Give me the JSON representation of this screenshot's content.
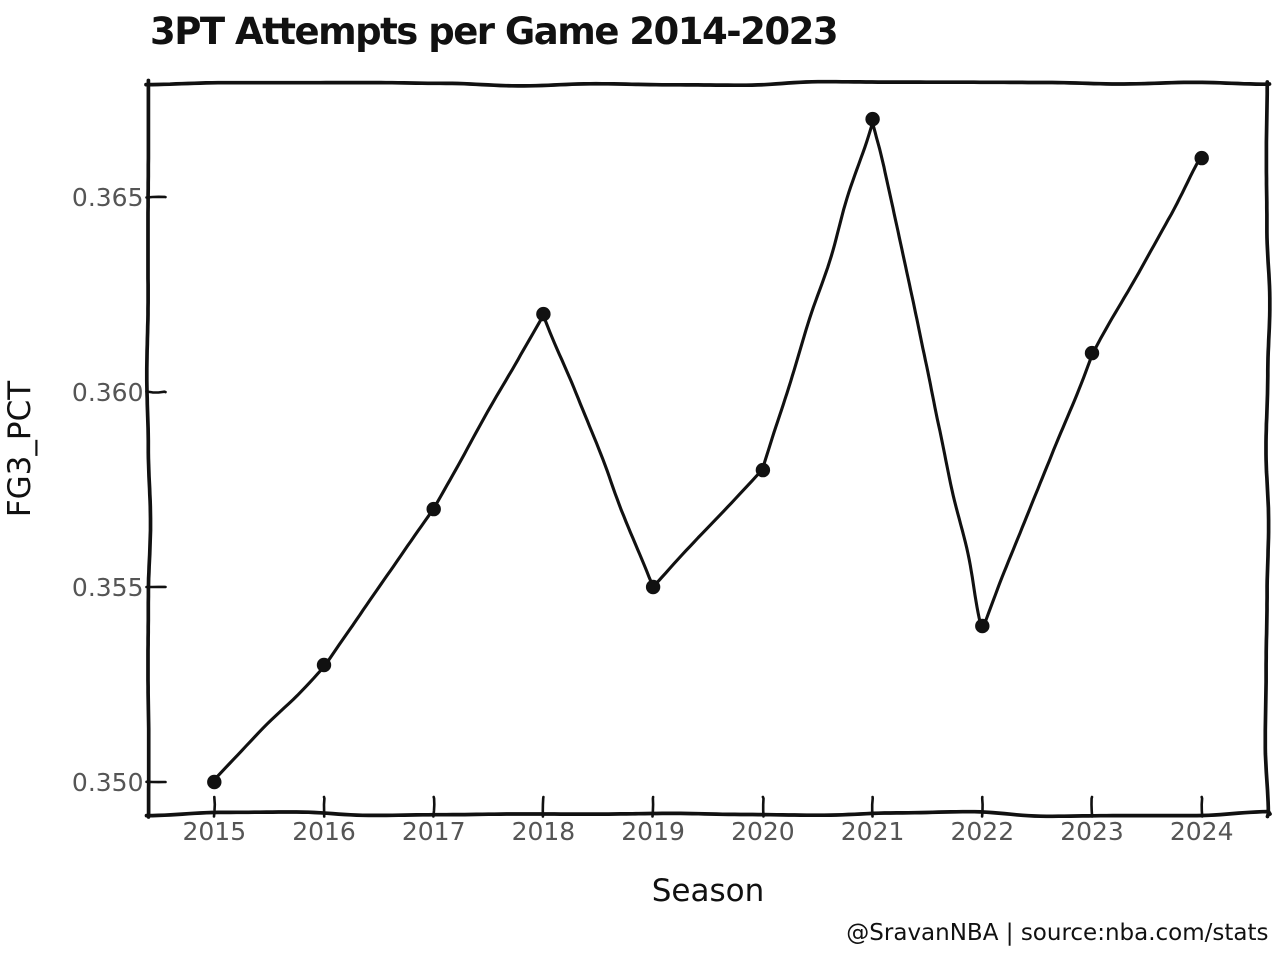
{
  "figure": {
    "background": "#ffffff",
    "style": "xkcd-hand-drawn"
  },
  "chart_data": {
    "type": "line",
    "title": "3PT Attempts per Game 2014-2023",
    "xlabel": "Season",
    "ylabel": "FG3_PCT",
    "watermark": "@SravanNBA | source:nba.com/stats",
    "x": [
      2015,
      2016,
      2017,
      2018,
      2019,
      2020,
      2021,
      2022,
      2023,
      2024
    ],
    "series": [
      {
        "name": "FG3_PCT",
        "values": [
          0.35,
          0.353,
          0.357,
          0.362,
          0.355,
          0.358,
          0.367,
          0.354,
          0.361,
          0.366
        ]
      }
    ],
    "xtick_labels": [
      "2015",
      "2016",
      "2017",
      "2018",
      "2019",
      "2020",
      "2021",
      "2022",
      "2023",
      "2024"
    ],
    "yticks": [
      0.35,
      0.355,
      0.36,
      0.365
    ],
    "ytick_labels": [
      "0.350",
      "0.355",
      "0.360",
      "0.365"
    ],
    "xlim": [
      2014.4,
      2024.6
    ],
    "ylim": [
      0.34918,
      0.3679
    ],
    "grid": false,
    "legend": false,
    "marker": "filled-circle",
    "colors": {
      "line": "#111111",
      "marker": "#111111",
      "spine": "#111111",
      "tick": "#111111",
      "tick_label": "#555555",
      "text": "#111111",
      "background": "#ffffff"
    }
  }
}
